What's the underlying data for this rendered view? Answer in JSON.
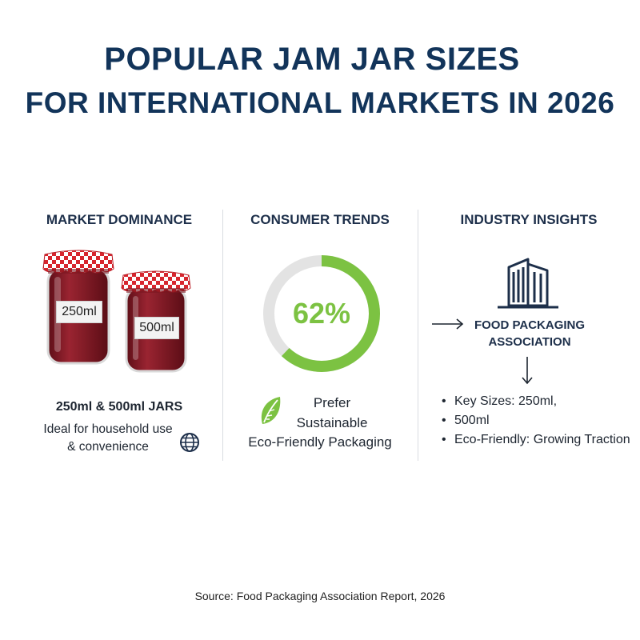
{
  "title": {
    "line1": "POPULAR JAM JAR SIZES",
    "line2": "FOR INTERNATIONAL MARKETS IN 2026"
  },
  "market_dominance": {
    "heading": "MARKET DOMINANCE",
    "jar_large_label": "250ml",
    "jar_small_label": "500ml",
    "sizes_title": "250ml & 500ml JARS",
    "description_line1": "Ideal for household use",
    "description_line2": "& convenience",
    "icon": "globe-icon"
  },
  "consumer_trends": {
    "heading": "CONSUMER TRENDS",
    "percent": 62,
    "percent_label": "62%",
    "text_line1": "Prefer",
    "text_line2": "Sustainable",
    "text_line3": "Eco-Friendly Packaging",
    "icon": "leaf-icon",
    "colors": {
      "fill": "#7cc242",
      "track": "#e3e3e3"
    }
  },
  "industry_insights": {
    "heading": "INDUSTRY INSIGHTS",
    "icon": "building-icon",
    "association_line1": "FOOD PACKAGING",
    "association_line2": "ASSOCIATION",
    "bullets": [
      "Key Sizes: 250ml,",
      "500ml",
      "Eco-Friendly: Growing Traction"
    ]
  },
  "source": "Source: Food Packaging Association Report, 2026",
  "colors": {
    "title": "#12345a",
    "jam": "#8a1f2a",
    "lid_red": "#d7262e",
    "accent_green": "#7cc242"
  }
}
